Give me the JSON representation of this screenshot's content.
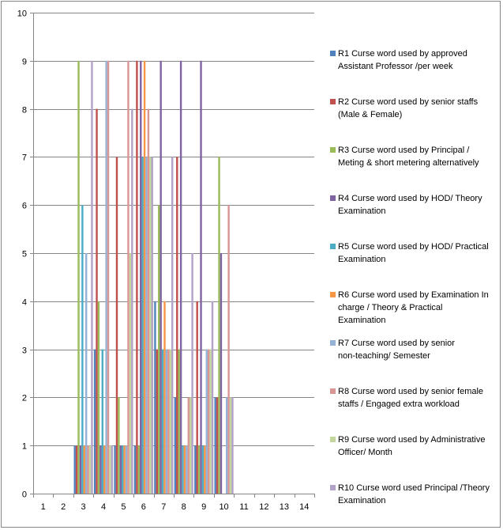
{
  "chart_data": {
    "type": "bar",
    "title": "",
    "xlabel": "",
    "ylabel": "",
    "categories": [
      "1",
      "2",
      "3",
      "4",
      "5",
      "6",
      "7",
      "8",
      "9",
      "10",
      "11",
      "12",
      "13",
      "14"
    ],
    "ylim": [
      0,
      10
    ],
    "yticks": [
      0,
      1,
      2,
      3,
      4,
      5,
      6,
      7,
      8,
      9,
      10
    ],
    "grid": "horizontal",
    "legend_position": "right",
    "series": [
      {
        "name": "R1 Curse word used by approved Assistant Professor  /per week",
        "color": "#4F81BD",
        "values": [
          0,
          0,
          1,
          3,
          1,
          1,
          4,
          2,
          1,
          2,
          0,
          0,
          0,
          0
        ]
      },
      {
        "name": "R2 Curse word used by senior staffs (Male  & Female)",
        "color": "#C0504D",
        "values": [
          0,
          0,
          1,
          8,
          7,
          9,
          3,
          7,
          4,
          2,
          0,
          0,
          0,
          0
        ]
      },
      {
        "name": "R3 Curse word used by Principal / Meting  & short metering alternatively",
        "color": "#9BBB59",
        "values": [
          0,
          0,
          9,
          4,
          2,
          1,
          6,
          3,
          1,
          7,
          0,
          0,
          0,
          0
        ]
      },
      {
        "name": "R4 Curse word used  by HOD/ Theory Examination",
        "color": "#8064A2",
        "values": [
          0,
          0,
          1,
          1,
          1,
          9,
          9,
          9,
          9,
          5,
          0,
          0,
          0,
          0
        ]
      },
      {
        "name": "R5 Curse word used  by HOD/ Practical Examination",
        "color": "#4BACC6",
        "values": [
          0,
          0,
          6,
          3,
          1,
          7,
          3,
          1,
          1,
          0,
          0,
          0,
          0,
          0
        ]
      },
      {
        "name": "R6 Curse word used by Examination In charge  / Theory & Practical Examination",
        "color": "#F79646",
        "values": [
          0,
          0,
          1,
          1,
          1,
          9,
          4,
          1,
          1,
          0,
          0,
          0,
          0,
          0
        ]
      },
      {
        "name": "R7 Curse word used by senior non-teaching/  Semester",
        "color": "#95B3D7",
        "values": [
          0,
          0,
          5,
          9,
          1,
          7,
          3,
          1,
          3,
          2,
          0,
          0,
          0,
          0
        ]
      },
      {
        "name": "R8 Curse word used by senior female staffs  / Engaged  extra workload",
        "color": "#DA9694",
        "values": [
          0,
          0,
          1,
          9,
          9,
          8,
          3,
          2,
          3,
          6,
          0,
          0,
          0,
          0
        ]
      },
      {
        "name": "R9 Curse word used  by Administrative Officer/ Month",
        "color": "#C3D69B",
        "values": [
          0,
          0,
          1,
          1,
          5,
          7,
          3,
          2,
          3,
          2,
          0,
          0,
          0,
          0
        ]
      },
      {
        "name": "R10 Curse word  used Principal /Theory Examination",
        "color": "#B3A2C7",
        "values": [
          0,
          0,
          9,
          1,
          8,
          7,
          7,
          5,
          4,
          2,
          0,
          0,
          0,
          0
        ]
      }
    ]
  }
}
